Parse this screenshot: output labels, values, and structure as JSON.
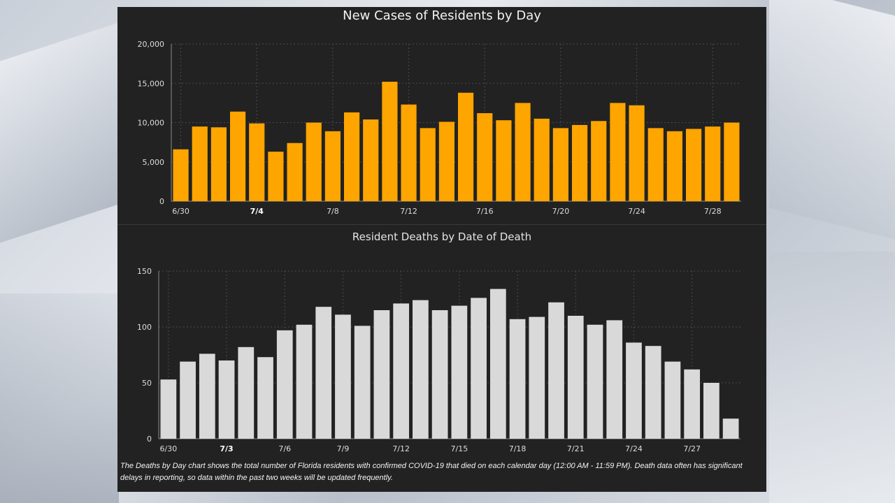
{
  "chart_data": [
    {
      "type": "bar",
      "title": "New Cases of Residents by Day",
      "xlabel": "",
      "ylabel": "",
      "ylim": [
        0,
        20000
      ],
      "yticks": [
        {
          "value": 0,
          "label": "0"
        },
        {
          "value": 5000,
          "label": "5,000"
        },
        {
          "value": 10000,
          "label": "10,000"
        },
        {
          "value": 15000,
          "label": "15,000"
        },
        {
          "value": 20000,
          "label": "20,000"
        }
      ],
      "categories": [
        "6/30",
        "7/1",
        "7/2",
        "7/3",
        "7/4",
        "7/5",
        "7/6",
        "7/7",
        "7/8",
        "7/9",
        "7/10",
        "7/11",
        "7/12",
        "7/13",
        "7/14",
        "7/15",
        "7/16",
        "7/17",
        "7/18",
        "7/19",
        "7/20",
        "7/21",
        "7/22",
        "7/23",
        "7/24",
        "7/25",
        "7/26",
        "7/27",
        "7/28",
        "7/29"
      ],
      "values": [
        6600,
        9500,
        9400,
        11400,
        9900,
        6300,
        7400,
        10000,
        8900,
        11300,
        10400,
        15200,
        12300,
        9300,
        10100,
        13800,
        11200,
        10300,
        12500,
        10500,
        9300,
        9700,
        10200,
        12500,
        12200,
        9300,
        8900,
        9200,
        9500,
        10000
      ],
      "tick_labels": [
        {
          "index": 0,
          "label": "6/30",
          "bold": false
        },
        {
          "index": 4,
          "label": "7/4",
          "bold": true
        },
        {
          "index": 8,
          "label": "7/8",
          "bold": false
        },
        {
          "index": 12,
          "label": "7/12",
          "bold": false
        },
        {
          "index": 16,
          "label": "7/16",
          "bold": false
        },
        {
          "index": 20,
          "label": "7/20",
          "bold": false
        },
        {
          "index": 24,
          "label": "7/24",
          "bold": false
        },
        {
          "index": 28,
          "label": "7/28",
          "bold": false
        }
      ],
      "grid": true,
      "color": "#ffa500"
    },
    {
      "type": "bar",
      "title": "Resident Deaths by Date of Death",
      "xlabel": "",
      "ylabel": "",
      "ylim": [
        0,
        150
      ],
      "yticks": [
        {
          "value": 0,
          "label": "0"
        },
        {
          "value": 50,
          "label": "50"
        },
        {
          "value": 100,
          "label": "100"
        },
        {
          "value": 150,
          "label": "150"
        }
      ],
      "categories": [
        "6/30",
        "7/1",
        "7/2",
        "7/3",
        "7/4",
        "7/5",
        "7/6",
        "7/7",
        "7/8",
        "7/9",
        "7/10",
        "7/11",
        "7/12",
        "7/13",
        "7/14",
        "7/15",
        "7/16",
        "7/17",
        "7/18",
        "7/19",
        "7/20",
        "7/21",
        "7/22",
        "7/23",
        "7/24",
        "7/25",
        "7/26",
        "7/27",
        "7/28",
        "7/29"
      ],
      "values": [
        53,
        69,
        76,
        70,
        82,
        73,
        97,
        102,
        118,
        111,
        101,
        115,
        121,
        124,
        115,
        119,
        126,
        134,
        107,
        109,
        122,
        110,
        102,
        106,
        86,
        83,
        69,
        62,
        50,
        18
      ],
      "tick_labels": [
        {
          "index": 0,
          "label": "6/30",
          "bold": false
        },
        {
          "index": 3,
          "label": "7/3",
          "bold": true
        },
        {
          "index": 6,
          "label": "7/6",
          "bold": false
        },
        {
          "index": 9,
          "label": "7/9",
          "bold": false
        },
        {
          "index": 12,
          "label": "7/12",
          "bold": false
        },
        {
          "index": 15,
          "label": "7/15",
          "bold": false
        },
        {
          "index": 18,
          "label": "7/18",
          "bold": false
        },
        {
          "index": 21,
          "label": "7/21",
          "bold": false
        },
        {
          "index": 24,
          "label": "7/24",
          "bold": false
        },
        {
          "index": 27,
          "label": "7/27",
          "bold": false
        }
      ],
      "grid": true,
      "color": "#d9d9d9"
    }
  ],
  "footnote": "The Deaths by Day chart shows the total number of Florida residents with confirmed COVID-19 that died on each calendar day (12:00 AM - 11:59 PM). Death data often has significant delays in reporting, so data within the past two weeks will be updated frequently."
}
